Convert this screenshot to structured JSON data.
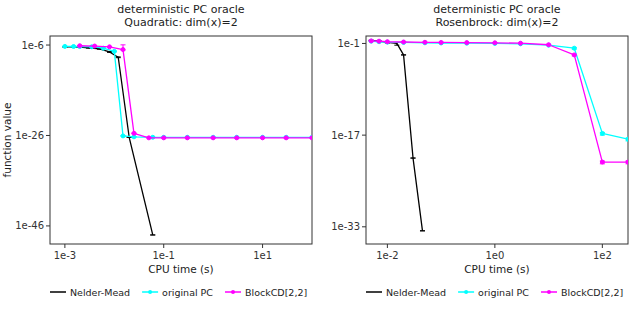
{
  "chart_data": [
    {
      "type": "line",
      "title": "deterministic PC oracle\nQuadratic: dim(x)=2",
      "x_label": "CPU time (s)",
      "y_label": "function value",
      "log": true,
      "xlim": [
        0.0005,
        100.0
      ],
      "ylim": [
        1e-50,
        0.0001
      ],
      "xticks": [
        {
          "value": 0.001,
          "label": "1e-3"
        },
        {
          "value": 0.1,
          "label": "1e-1"
        },
        {
          "value": 10.0,
          "label": "1e1"
        }
      ],
      "yticks": [
        {
          "value": 1e-46,
          "label": "1e-46"
        },
        {
          "value": 1e-26,
          "label": "1e-26"
        },
        {
          "value": 1e-06,
          "label": "1e-6"
        }
      ],
      "legend": "lower left",
      "series": [
        {
          "name": "Nelder-Mead",
          "color": "#000000",
          "marker": "none",
          "x": [
            0.001,
            0.0015,
            0.002,
            0.003,
            0.005,
            0.008,
            0.012,
            0.02,
            0.06
          ],
          "values": [
            4e-07,
            3.8e-07,
            3.5e-07,
            2.5e-07,
            1.5e-07,
            3e-08,
            2e-09,
            4e-27,
            1e-48
          ],
          "errors_low": [
            5e-08,
            5e-08,
            5e-08,
            4e-08,
            3e-08,
            6e-09,
            4e-10,
            0,
            0
          ],
          "errors_high": [
            5e-08,
            5e-08,
            5e-08,
            4e-08,
            3e-08,
            6e-09,
            4e-10,
            0,
            0
          ]
        },
        {
          "name": "original PC",
          "color": "#00FFFF",
          "marker": "circle",
          "x": [
            0.001,
            0.0015,
            0.002,
            0.0035,
            0.006,
            0.01,
            0.015,
            0.025,
            0.06,
            0.1,
            0.3,
            1.0,
            3.0,
            10.0,
            30.0,
            100.0
          ],
          "values": [
            5e-07,
            4.8e-07,
            4.5e-07,
            4e-07,
            2e-07,
            4e-08,
            8e-27,
            5e-27,
            4e-27,
            4e-27,
            4e-27,
            4e-27,
            4e-27,
            4e-27,
            4e-27,
            4e-27
          ],
          "errors_low": [
            5e-08,
            5e-08,
            5e-08,
            4e-08,
            3e-08,
            8e-09,
            0,
            0,
            0,
            0,
            0,
            0,
            0,
            0,
            0,
            0
          ],
          "errors_high": [
            5e-08,
            5e-08,
            5e-08,
            4e-08,
            3e-08,
            8e-09,
            0,
            0,
            0,
            0,
            0,
            0,
            0,
            0,
            0,
            0
          ]
        },
        {
          "name": "BlockCD[2,2]",
          "color": "#FF00FF",
          "marker": "circle",
          "x": [
            0.002,
            0.004,
            0.008,
            0.015,
            0.025,
            0.05,
            0.1,
            0.3,
            1.0,
            3.0,
            10.0,
            30.0,
            100.0
          ],
          "values": [
            7e-07,
            6e-07,
            4e-07,
            1e-07,
            3e-26,
            3e-27,
            3e-27,
            3e-27,
            3e-27,
            3e-27,
            3e-27,
            3e-27,
            3e-27
          ],
          "errors_low": [
            1e-07,
            1e-07,
            5e-08,
            2e-08,
            5e-27,
            0,
            0,
            0,
            0,
            0,
            0,
            0,
            0
          ],
          "errors_high": [
            1e-07,
            1e-07,
            5e-08,
            1e-06,
            5e-27,
            0,
            0,
            0,
            0,
            0,
            0,
            0,
            0
          ]
        }
      ]
    },
    {
      "type": "line",
      "title": "deterministic PC oracle\nRosenbrock: dim(x)=2",
      "x_label": "CPU time (s)",
      "log": true,
      "xlim": [
        0.004,
        300.0
      ],
      "ylim": [
        1e-36,
        2.0
      ],
      "xticks": [
        {
          "value": 0.01,
          "label": "1e-2"
        },
        {
          "value": 1.0,
          "label": "1e0"
        },
        {
          "value": 100.0,
          "label": "1e2"
        }
      ],
      "yticks": [
        {
          "value": 1e-33,
          "label": "1e-33"
        },
        {
          "value": 1e-17,
          "label": "1e-17"
        },
        {
          "value": 0.1,
          "label": "1e-1"
        }
      ],
      "legend": "lower left",
      "series": [
        {
          "name": "Nelder-Mead",
          "color": "#000000",
          "marker": "none",
          "x": [
            0.005,
            0.007,
            0.01,
            0.015,
            0.02,
            0.03,
            0.045
          ],
          "values": [
            0.35,
            0.25,
            0.15,
            0.1,
            0.001,
            1e-21,
            2e-34
          ],
          "errors_low": [
            0.03,
            0.02,
            0.03,
            0.05,
            0,
            0,
            0
          ],
          "errors_high": [
            0.03,
            0.02,
            0.03,
            0.05,
            0,
            0,
            0
          ]
        },
        {
          "name": "original PC",
          "color": "#00FFFF",
          "marker": "circle",
          "x": [
            0.005,
            0.007,
            0.01,
            0.02,
            0.05,
            0.1,
            0.3,
            1.0,
            3.0,
            10.0,
            30.0,
            100.0,
            300.0
          ],
          "values": [
            0.25,
            0.2,
            0.17,
            0.15,
            0.13,
            0.12,
            0.11,
            0.1,
            0.085,
            0.05,
            0.015,
            2e-17,
            2e-18
          ],
          "errors_low": [
            0.02,
            0.015,
            0.012,
            0.01,
            0.008,
            0.007,
            0.006,
            0.005,
            0.004,
            0.005,
            0.005,
            1e-17,
            1e-18
          ],
          "errors_high": [
            0.02,
            0.015,
            0.012,
            0.01,
            0.008,
            0.007,
            0.006,
            0.005,
            0.004,
            0.005,
            0.005,
            1e-17,
            1e-18
          ]
        },
        {
          "name": "BlockCD[2,2]",
          "color": "#FF00FF",
          "marker": "circle",
          "x": [
            0.005,
            0.007,
            0.01,
            0.02,
            0.05,
            0.1,
            0.3,
            1.0,
            3.0,
            10.0,
            30.0,
            100.0,
            300.0
          ],
          "values": [
            0.28,
            0.25,
            0.2,
            0.18,
            0.16,
            0.15,
            0.14,
            0.13,
            0.11,
            0.06,
            0.001,
            2e-22,
            2e-22
          ],
          "errors_low": [
            0.02,
            0.02,
            0.015,
            0.012,
            0.01,
            0.008,
            0.007,
            0.006,
            0.005,
            0.01,
            0.0003,
            1e-22,
            1e-22
          ],
          "errors_high": [
            0.02,
            0.02,
            0.015,
            0.012,
            0.01,
            0.008,
            0.007,
            0.006,
            0.005,
            0.01,
            0.0003,
            1e-22,
            1e-22
          ]
        }
      ]
    }
  ]
}
